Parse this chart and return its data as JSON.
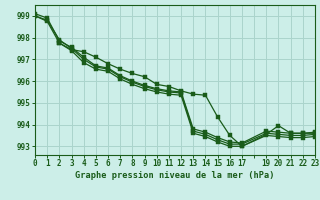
{
  "title": "Graphe pression niveau de la mer (hPa)",
  "background_color": "#cceee8",
  "grid_color": "#aad4cc",
  "line_color": "#1a5c1a",
  "marker_color": "#1a5c1a",
  "xmin": 0,
  "xmax": 23,
  "ymin": 992.6,
  "ymax": 999.5,
  "yticks": [
    993,
    994,
    995,
    996,
    997,
    998,
    999
  ],
  "xtick_labels": [
    "0",
    "1",
    "2",
    "3",
    "4",
    "5",
    "6",
    "7",
    "8",
    "9",
    "10",
    "11",
    "12",
    "13",
    "14",
    "15",
    "16",
    "17",
    "",
    "19",
    "20",
    "21",
    "22",
    "23"
  ],
  "series": [
    [
      999.0,
      998.8,
      997.9,
      997.5,
      997.0,
      996.65,
      996.55,
      996.2,
      995.95,
      995.75,
      995.6,
      995.5,
      995.45,
      993.7,
      993.55,
      993.3,
      993.1,
      993.1,
      null,
      993.6,
      993.55,
      993.5,
      993.5,
      993.55
    ],
    [
      999.0,
      998.75,
      997.75,
      997.4,
      996.85,
      996.55,
      996.45,
      996.1,
      995.85,
      995.65,
      995.5,
      995.4,
      995.35,
      993.6,
      993.45,
      993.2,
      993.0,
      993.0,
      null,
      993.5,
      993.45,
      993.4,
      993.4,
      993.45
    ],
    [
      999.1,
      998.9,
      997.85,
      997.55,
      997.1,
      996.7,
      996.6,
      996.25,
      996.0,
      995.8,
      995.65,
      995.55,
      995.5,
      993.8,
      993.65,
      993.4,
      993.2,
      993.15,
      null,
      993.7,
      993.65,
      993.6,
      993.6,
      993.65
    ],
    [
      null,
      null,
      997.75,
      997.45,
      997.35,
      997.1,
      996.8,
      996.55,
      996.35,
      996.2,
      995.85,
      995.75,
      995.55,
      995.4,
      995.35,
      994.35,
      993.5,
      993.0,
      null,
      993.55,
      993.95,
      993.6,
      993.6,
      993.6
    ]
  ]
}
